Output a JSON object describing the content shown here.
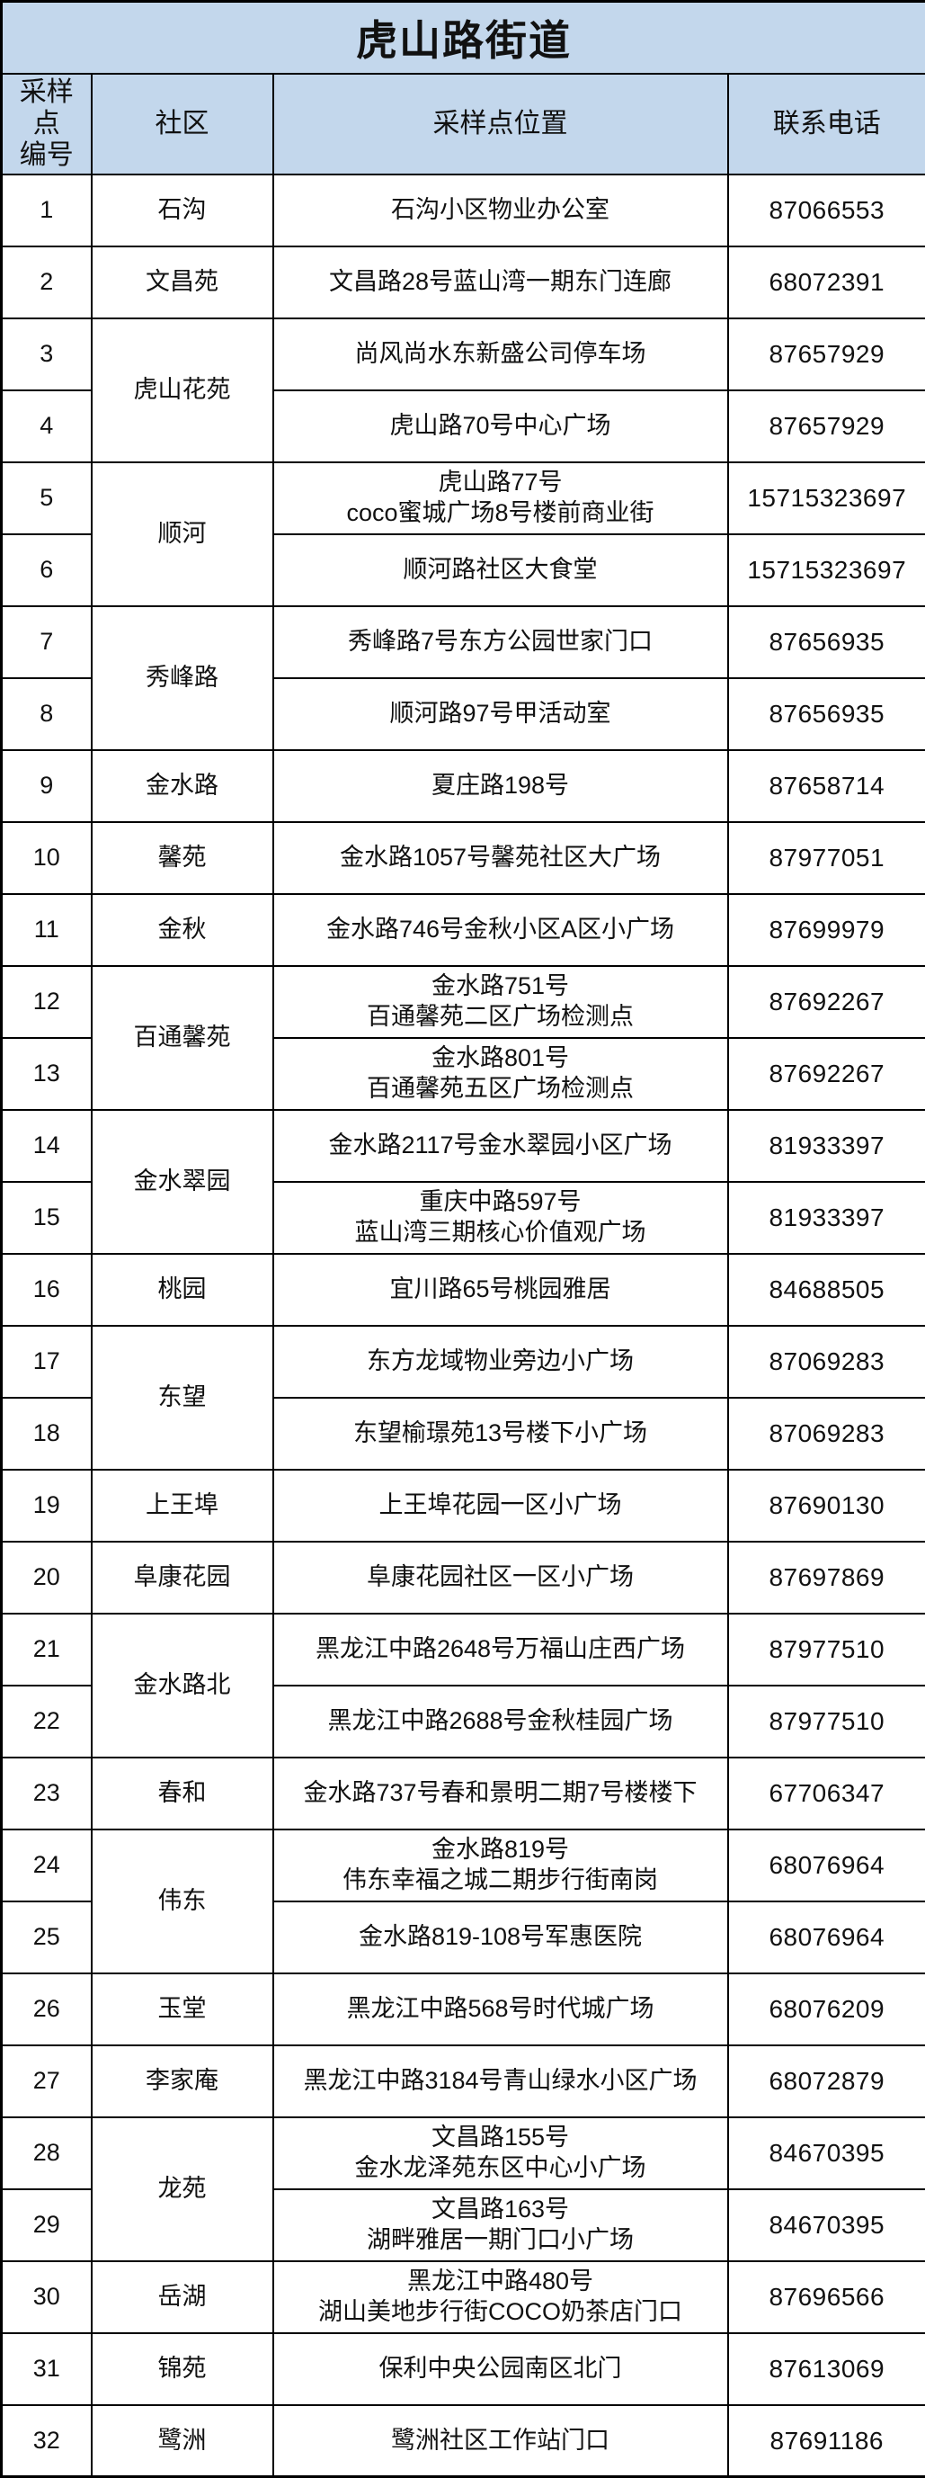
{
  "title": "虎山路街道",
  "colors": {
    "header_bg": "#c3d7ec",
    "title_color": "#fe0000",
    "border": "#000000",
    "body_bg": "#ffffff",
    "text": "#111111"
  },
  "columns": {
    "no": "采样点\n编号",
    "community": "社区",
    "location": "采样点位置",
    "phone": "联系电话"
  },
  "groups": [
    {
      "community": "石沟",
      "rows": [
        {
          "no": "1",
          "location": [
            "石沟小区物业办公室"
          ],
          "phone": "87066553"
        }
      ]
    },
    {
      "community": "文昌苑",
      "rows": [
        {
          "no": "2",
          "location": [
            "文昌路28号蓝山湾一期东门连廊"
          ],
          "phone": "68072391"
        }
      ]
    },
    {
      "community": "虎山花苑",
      "rows": [
        {
          "no": "3",
          "location": [
            "尚风尚水东新盛公司停车场"
          ],
          "phone": "87657929"
        },
        {
          "no": "4",
          "location": [
            "虎山路70号中心广场"
          ],
          "phone": "87657929"
        }
      ]
    },
    {
      "community": "顺河",
      "rows": [
        {
          "no": "5",
          "location": [
            "虎山路77号",
            "coco蜜城广场8号楼前商业街"
          ],
          "phone": "15715323697"
        },
        {
          "no": "6",
          "location": [
            "顺河路社区大食堂"
          ],
          "phone": "15715323697"
        }
      ]
    },
    {
      "community": "秀峰路",
      "rows": [
        {
          "no": "7",
          "location": [
            "秀峰路7号东方公园世家门口"
          ],
          "phone": "87656935"
        },
        {
          "no": "8",
          "location": [
            "顺河路97号甲活动室"
          ],
          "phone": "87656935"
        }
      ]
    },
    {
      "community": "金水路",
      "rows": [
        {
          "no": "9",
          "location": [
            "夏庄路198号"
          ],
          "phone": "87658714"
        }
      ]
    },
    {
      "community": "馨苑",
      "rows": [
        {
          "no": "10",
          "location": [
            "金水路1057号馨苑社区大广场"
          ],
          "phone": "87977051"
        }
      ]
    },
    {
      "community": "金秋",
      "rows": [
        {
          "no": "11",
          "location": [
            "金水路746号金秋小区A区小广场"
          ],
          "phone": "87699979"
        }
      ]
    },
    {
      "community": "百通馨苑",
      "rows": [
        {
          "no": "12",
          "location": [
            "金水路751号",
            "百通馨苑二区广场检测点"
          ],
          "phone": "87692267"
        },
        {
          "no": "13",
          "location": [
            "金水路801号",
            "百通馨苑五区广场检测点"
          ],
          "phone": "87692267"
        }
      ]
    },
    {
      "community": "金水翠园",
      "rows": [
        {
          "no": "14",
          "location": [
            "金水路2117号金水翠园小区广场"
          ],
          "phone": "81933397"
        },
        {
          "no": "15",
          "location": [
            "重庆中路597号",
            "蓝山湾三期核心价值观广场"
          ],
          "phone": "81933397"
        }
      ]
    },
    {
      "community": "桃园",
      "rows": [
        {
          "no": "16",
          "location": [
            "宜川路65号桃园雅居"
          ],
          "phone": "84688505"
        }
      ]
    },
    {
      "community": "东望",
      "rows": [
        {
          "no": "17",
          "location": [
            "东方龙域物业旁边小广场"
          ],
          "phone": "87069283"
        },
        {
          "no": "18",
          "location": [
            "东望榆璟苑13号楼下小广场"
          ],
          "phone": "87069283"
        }
      ]
    },
    {
      "community": "上王埠",
      "rows": [
        {
          "no": "19",
          "location": [
            "上王埠花园一区小广场"
          ],
          "phone": "87690130"
        }
      ]
    },
    {
      "community": "阜康花园",
      "rows": [
        {
          "no": "20",
          "location": [
            "阜康花园社区一区小广场"
          ],
          "phone": "87697869"
        }
      ]
    },
    {
      "community": "金水路北",
      "rows": [
        {
          "no": "21",
          "location": [
            "黑龙江中路2648号万福山庄西广场"
          ],
          "phone": "87977510"
        },
        {
          "no": "22",
          "location": [
            "黑龙江中路2688号金秋桂园广场"
          ],
          "phone": "87977510"
        }
      ]
    },
    {
      "community": "春和",
      "rows": [
        {
          "no": "23",
          "location": [
            "金水路737号春和景明二期7号楼楼下"
          ],
          "phone": "67706347"
        }
      ]
    },
    {
      "community": "伟东",
      "rows": [
        {
          "no": "24",
          "location": [
            "金水路819号",
            "伟东幸福之城二期步行街南岗"
          ],
          "phone": "68076964"
        },
        {
          "no": "25",
          "location": [
            "金水路819-108号军惠医院"
          ],
          "phone": "68076964"
        }
      ]
    },
    {
      "community": "玉堂",
      "rows": [
        {
          "no": "26",
          "location": [
            "黑龙江中路568号时代城广场"
          ],
          "phone": "68076209"
        }
      ]
    },
    {
      "community": "李家庵",
      "rows": [
        {
          "no": "27",
          "location": [
            "黑龙江中路3184号青山绿水小区广场"
          ],
          "phone": "68072879"
        }
      ]
    },
    {
      "community": "龙苑",
      "rows": [
        {
          "no": "28",
          "location": [
            "文昌路155号",
            "金水龙泽苑东区中心小广场"
          ],
          "phone": "84670395"
        },
        {
          "no": "29",
          "location": [
            "文昌路163号",
            "湖畔雅居一期门口小广场"
          ],
          "phone": "84670395"
        }
      ]
    },
    {
      "community": "岳湖",
      "rows": [
        {
          "no": "30",
          "location": [
            "黑龙江中路480号",
            "湖山美地步行街COCO奶茶店门口"
          ],
          "phone": "87696566"
        }
      ]
    },
    {
      "community": "锦苑",
      "rows": [
        {
          "no": "31",
          "location": [
            "保利中央公园南区北门"
          ],
          "phone": "87613069"
        }
      ]
    },
    {
      "community": "鹭洲",
      "rows": [
        {
          "no": "32",
          "location": [
            "鹭洲社区工作站门口"
          ],
          "phone": "87691186"
        }
      ]
    }
  ]
}
